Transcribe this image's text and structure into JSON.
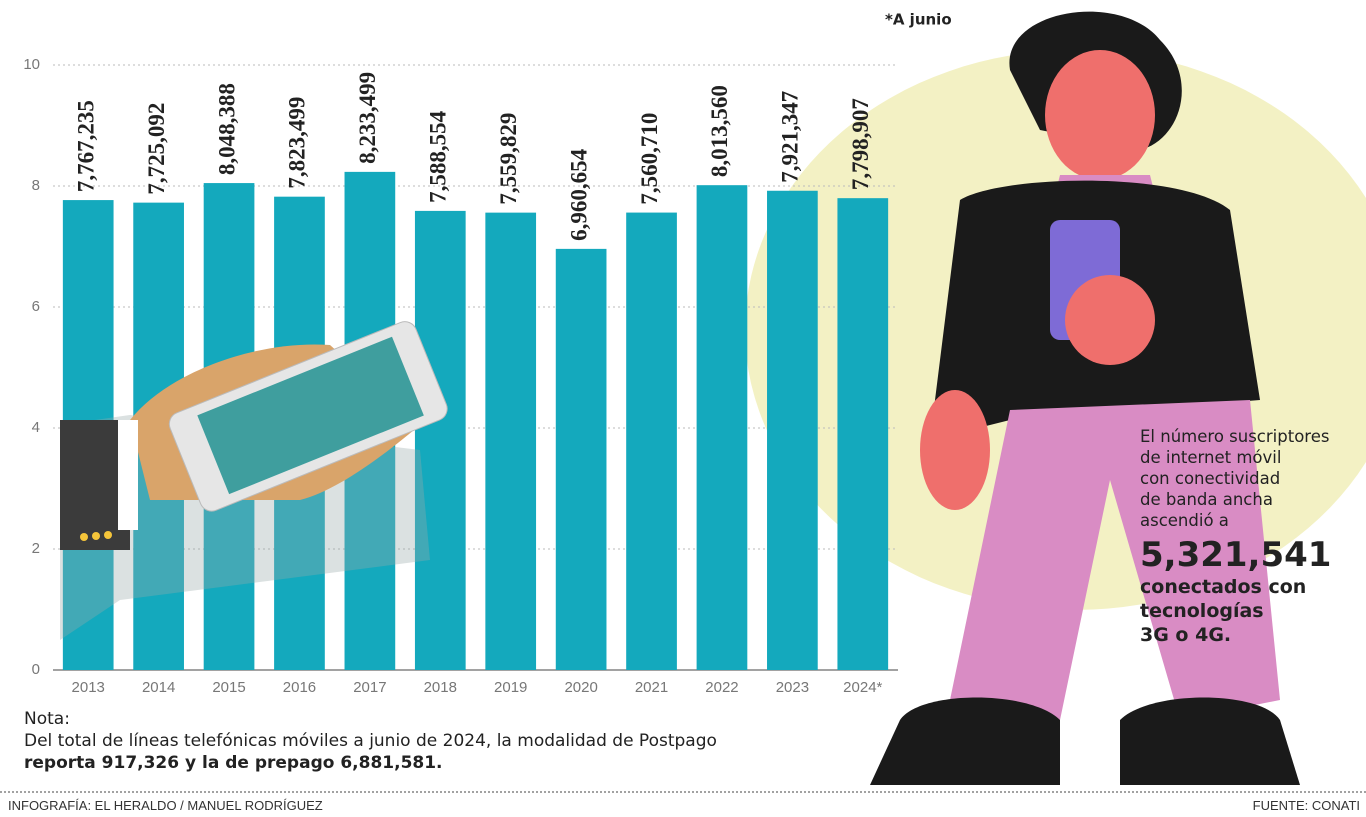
{
  "chart_data": {
    "type": "bar",
    "categories": [
      "2013",
      "2014",
      "2015",
      "2016",
      "2017",
      "2018",
      "2019",
      "2020",
      "2021",
      "2022",
      "2023",
      "2024*"
    ],
    "values": [
      7.767235,
      7.725092,
      8.048388,
      7.823499,
      8.233499,
      7.588554,
      7.559829,
      6.960654,
      7.56071,
      8.01356,
      7.921347,
      7.798907
    ],
    "value_labels": [
      "7,767,235",
      "7,725,092",
      "8,048,388",
      "7,823,499",
      "8,233,499",
      "7,588,554",
      "7,559,829",
      "6,960,654",
      "7,560,710",
      "8,013,560",
      "7,921,347",
      "7,798,907"
    ],
    "color": "#14a9bd",
    "ylim": [
      0,
      10
    ],
    "yticks": [
      0,
      2,
      4,
      6,
      8,
      10
    ],
    "grid": true,
    "annotation": "*A junio"
  },
  "note": {
    "heading": "Nota:",
    "line1": "Del total de líneas telefónicas móviles a junio de 2024, la modalidad de Postpago",
    "line2": "reporta 917,326 y la de prepago 6,881,581."
  },
  "callout": {
    "lines": [
      "El número suscriptores",
      "de internet móvil",
      "con conectividad",
      "de banda ancha",
      "ascendió a"
    ],
    "figure": "5,321,541",
    "caption": [
      "conectados con",
      "tecnologías",
      "3G o 4G."
    ]
  },
  "footer": {
    "credit": "INFOGRAFÍA: EL HERALDO / MANUEL RODRÍGUEZ",
    "source": "FUENTE: CONATI"
  }
}
